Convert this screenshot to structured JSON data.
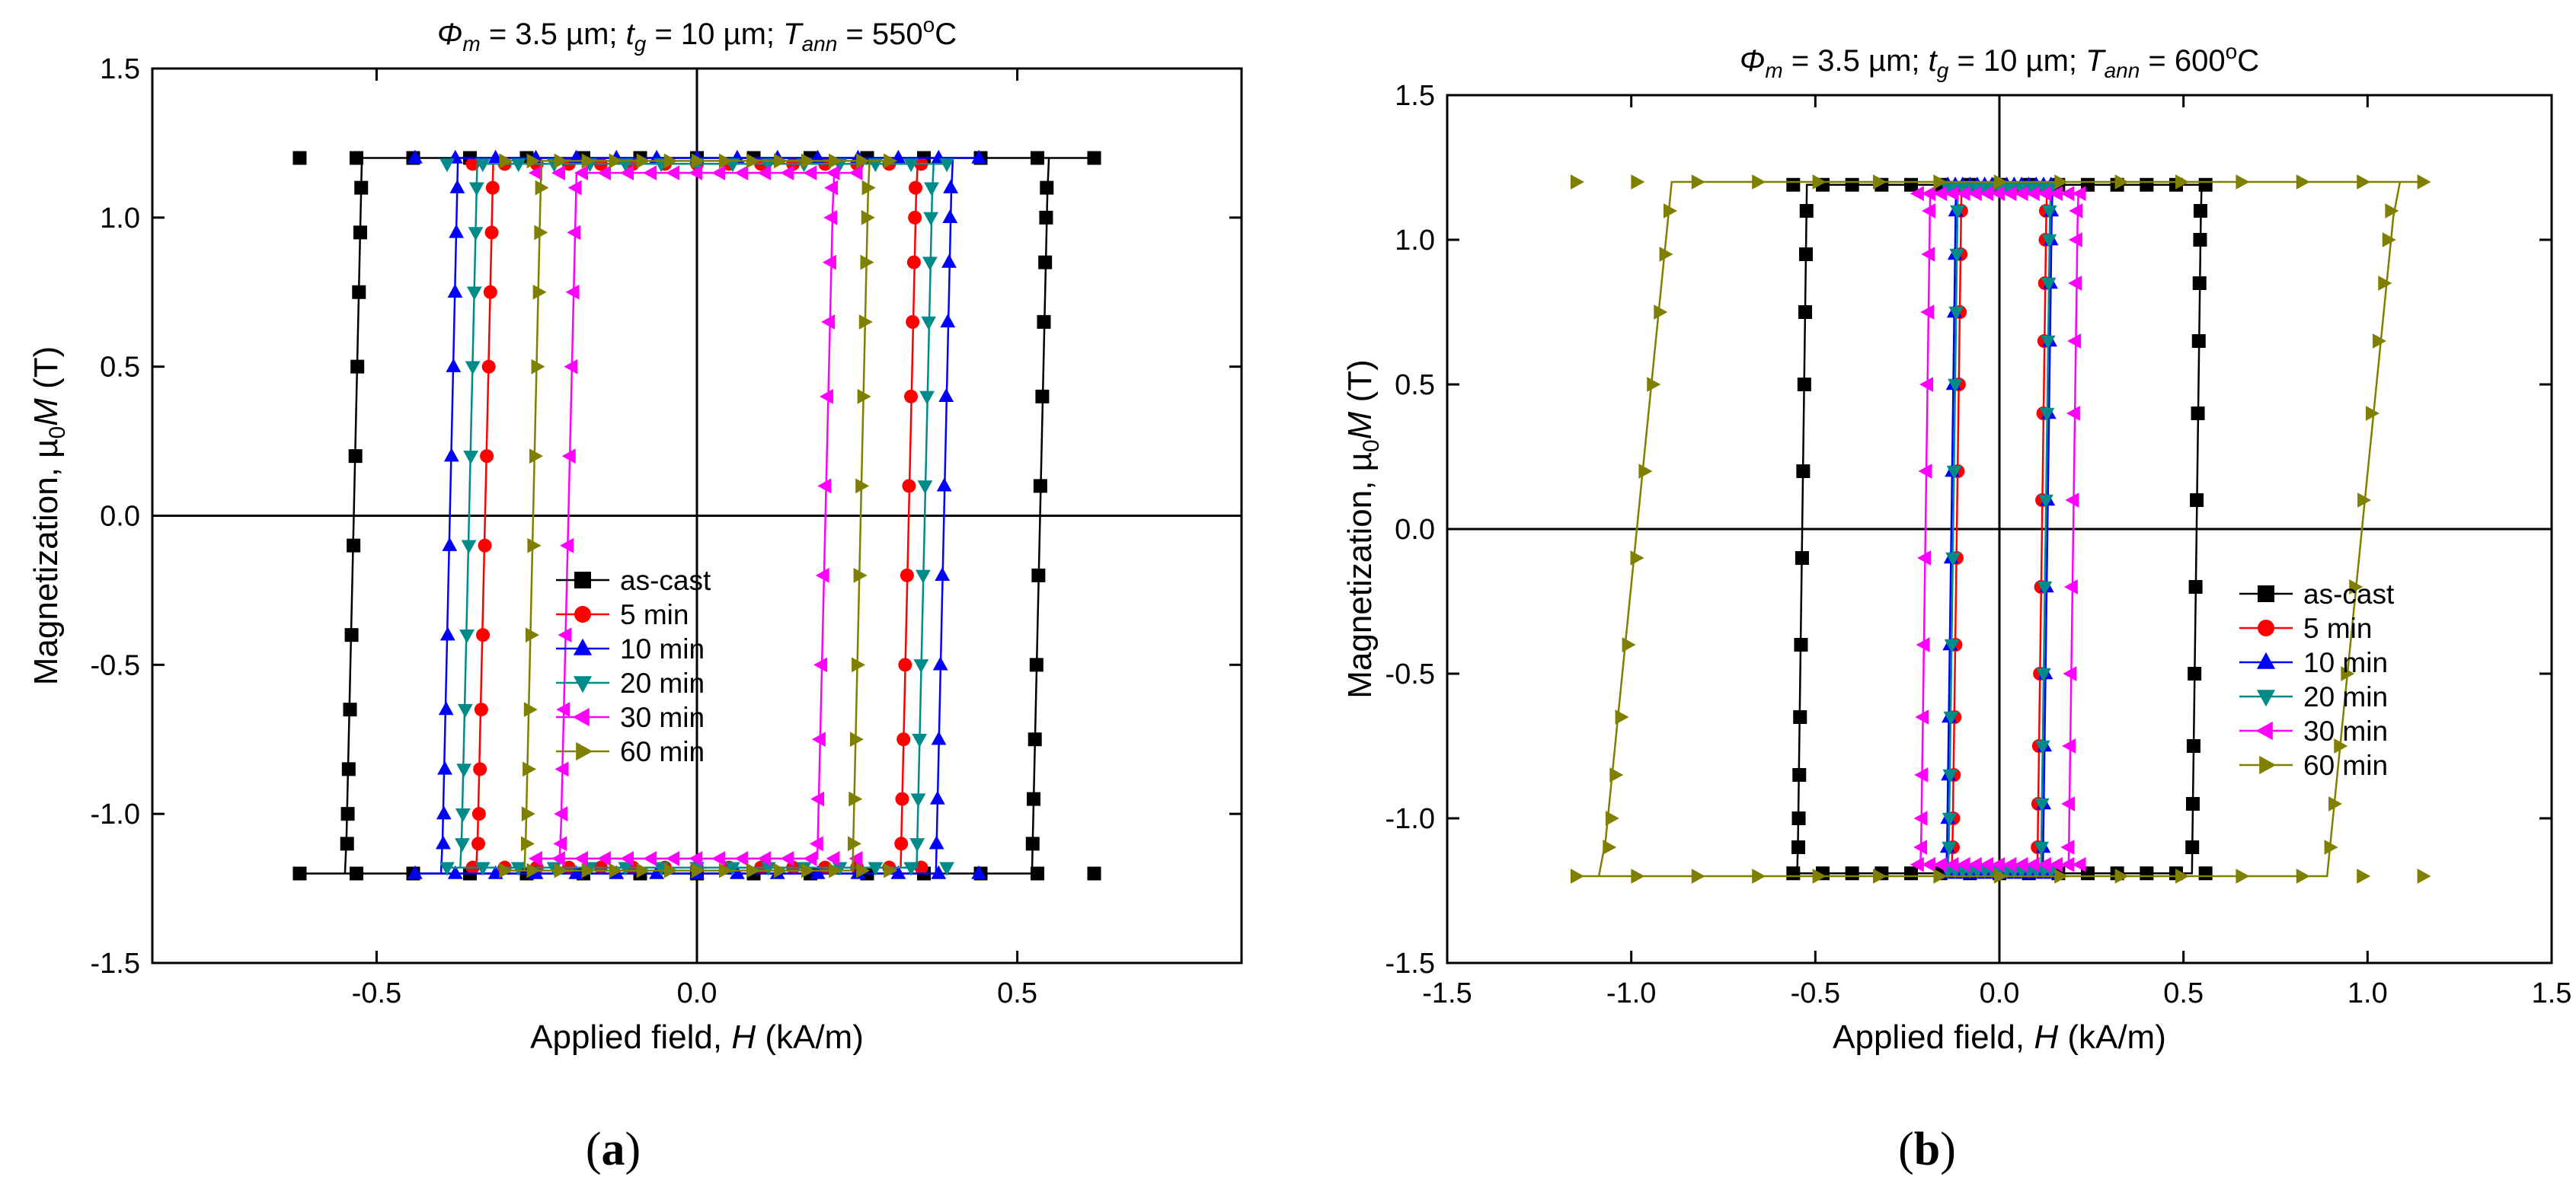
{
  "chart_data": [
    {
      "type": "line",
      "title": "Φm = 3.5 µm; tg = 10 µm; Tann = 550°C",
      "title_parts": {
        "phi": "Φ",
        "phi_sub": "m",
        "phi_val": " = 3.5 µm; ",
        "t": "t",
        "t_sub": "g",
        "t_val": " = 10 µm; ",
        "T": "T",
        "T_sub": "ann",
        "T_val": " = 550",
        "deg": "o",
        "unit": "C"
      },
      "xlabel": "Applied field, H (kA/m)",
      "xlabel_parts": {
        "pre": "Applied field, ",
        "var": "H",
        "post": " (kA/m)"
      },
      "ylabel": "Magnetization, µ0M (T)",
      "ylabel_parts": {
        "pre": "Magnetization, µ",
        "sub": "0",
        "var": "M",
        "post": " (T)"
      },
      "xlim": [
        -0.85,
        0.85
      ],
      "ylim": [
        -1.5,
        1.5
      ],
      "xticks": [
        -0.5,
        0.0,
        0.5
      ],
      "xtick_labels": [
        "-0.5",
        "0.0",
        "0.5"
      ],
      "yticks": [
        -1.5,
        -1.0,
        -0.5,
        0.0,
        0.5,
        1.0,
        1.5
      ],
      "ytick_labels": [
        "-1.5",
        "-1.0",
        "-0.5",
        "0.0",
        "0.5",
        "1.0",
        "1.5"
      ],
      "caption": "(a)",
      "series": [
        {
          "name": "as-cast",
          "color": "#000000",
          "marker": "square",
          "hc": 0.535,
          "hmax": 0.62,
          "ms": 1.2
        },
        {
          "name": "  5 min",
          "color": "#ff0000",
          "marker": "circle",
          "hc": 0.33,
          "hmax": 0.35,
          "ms": 1.18
        },
        {
          "name": "10 min",
          "color": "#0000ff",
          "marker": "triangle-up",
          "hc": 0.385,
          "hmax": 0.44,
          "ms": 1.2
        },
        {
          "name": "20 min",
          "color": "#008b8b",
          "marker": "triangle-down",
          "hc": 0.355,
          "hmax": 0.39,
          "ms": 1.18
        },
        {
          "name": "30 min",
          "color": "#ff00ff",
          "marker": "triangle-left",
          "hc": 0.2,
          "hmax": 0.25,
          "ms": 1.15
        },
        {
          "name": "60 min",
          "color": "#808000",
          "marker": "triangle-right",
          "hc": 0.255,
          "hmax": 0.3,
          "ms": 1.19
        }
      ]
    },
    {
      "type": "line",
      "title": "Φm = 3.5 µm; tg = 10 µm; Tann = 600°C",
      "title_parts": {
        "phi": "Φ",
        "phi_sub": "m",
        "phi_val": " = 3.5 µm; ",
        "t": "t",
        "t_sub": "g",
        "t_val": " = 10 µm; ",
        "T": "T",
        "T_sub": "ann",
        "T_val": " = 600",
        "deg": "o",
        "unit": "C"
      },
      "xlabel": "Applied field, H (kA/m)",
      "xlabel_parts": {
        "pre": "Applied field, ",
        "var": "H",
        "post": " (kA/m)"
      },
      "ylabel": "Magnetization, µ0M (T)",
      "ylabel_parts": {
        "pre": "Magnetization, µ",
        "sub": "0",
        "var": "M",
        "post": " (T)"
      },
      "xlim": [
        -1.5,
        1.5
      ],
      "ylim": [
        -1.5,
        1.5
      ],
      "xticks": [
        -1.5,
        -1.0,
        -0.5,
        0.0,
        0.5,
        1.0,
        1.5
      ],
      "xtick_labels": [
        "-1.5",
        "-1.0",
        "-0.5",
        "0.0",
        "0.5",
        "1.0",
        "1.5"
      ],
      "yticks": [
        -1.5,
        -1.0,
        -0.5,
        0.0,
        0.5,
        1.0,
        1.5
      ],
      "ytick_labels": [
        "-1.5",
        "-1.0",
        "-0.5",
        "0.0",
        "0.5",
        "1.0",
        "1.5"
      ],
      "caption": "(b)",
      "series": [
        {
          "name": "as-cast",
          "color": "#000000",
          "marker": "square",
          "hc": 0.535,
          "hmax": 0.56,
          "ms": 1.19
        },
        {
          "name": "  5 min",
          "color": "#ff0000",
          "marker": "circle",
          "hc": 0.115,
          "hmax": 0.13,
          "ms": 1.18
        },
        {
          "name": "10 min",
          "color": "#0000ff",
          "marker": "triangle-up",
          "hc": 0.13,
          "hmax": 0.14,
          "ms": 1.19
        },
        {
          "name": "20 min",
          "color": "#008b8b",
          "marker": "triangle-down",
          "hc": 0.125,
          "hmax": 0.14,
          "ms": 1.18
        },
        {
          "name": "30 min",
          "color": "#ff00ff",
          "marker": "triangle-left",
          "hc": 0.2,
          "hmax": 0.22,
          "ms": 1.16
        },
        {
          "name": "60 min",
          "color": "#808000",
          "marker": "triangle-right",
          "hc": 0.98,
          "hmax": 1.15,
          "ms": 1.2
        }
      ]
    }
  ]
}
